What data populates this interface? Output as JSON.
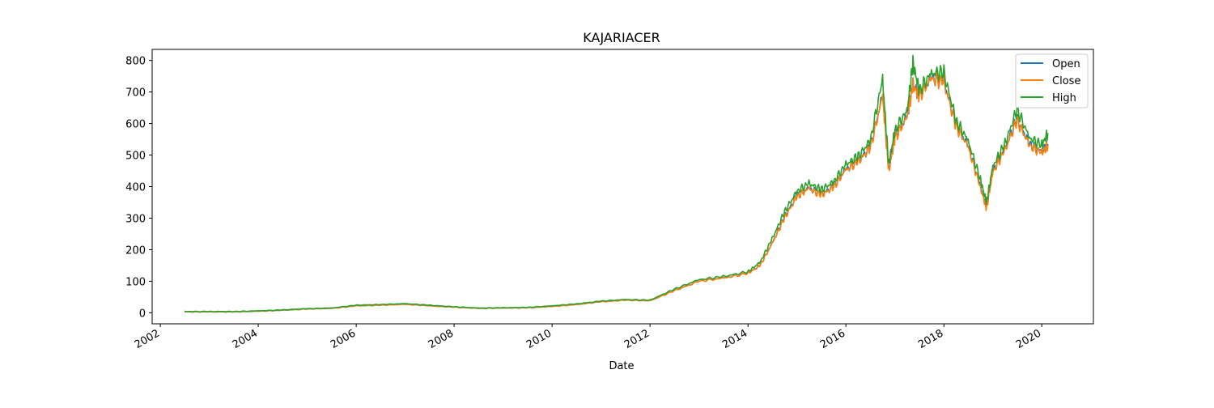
{
  "chart_data": {
    "type": "line",
    "title": "KAJARIACER",
    "xlabel": "Date",
    "ylabel": "",
    "x_type": "date",
    "xlim": [
      "2001-11-01",
      "2021-01-20"
    ],
    "ylim": [
      -35,
      835
    ],
    "x_ticks": [
      "2002",
      "2004",
      "2006",
      "2008",
      "2010",
      "2012",
      "2014",
      "2016",
      "2018",
      "2020"
    ],
    "y_ticks": [
      0,
      100,
      200,
      300,
      400,
      500,
      600,
      700,
      800
    ],
    "grid": false,
    "legend_position": "top-right",
    "colors": {
      "Open": "#1f77b4",
      "Close": "#ff7f0e",
      "High": "#2ca02c"
    },
    "x": [
      "2002-07-01",
      "2003-01-01",
      "2003-07-01",
      "2004-01-01",
      "2004-07-01",
      "2005-01-01",
      "2005-07-01",
      "2006-01-01",
      "2006-07-01",
      "2007-01-01",
      "2007-07-01",
      "2008-01-01",
      "2008-07-01",
      "2009-01-01",
      "2009-07-01",
      "2010-01-01",
      "2010-07-01",
      "2011-01-01",
      "2011-07-01",
      "2012-01-01",
      "2012-07-01",
      "2013-01-01",
      "2013-07-01",
      "2014-01-01",
      "2014-04-01",
      "2014-07-01",
      "2014-10-01",
      "2015-01-01",
      "2015-04-01",
      "2015-07-01",
      "2015-10-01",
      "2016-01-01",
      "2016-04-01",
      "2016-07-01",
      "2016-10-01",
      "2016-11-15",
      "2017-01-01",
      "2017-04-01",
      "2017-05-15",
      "2017-07-01",
      "2017-10-01",
      "2018-01-01",
      "2018-04-01",
      "2018-07-01",
      "2018-10-01",
      "2018-11-15",
      "2019-01-01",
      "2019-04-01",
      "2019-07-01",
      "2019-10-01",
      "2020-01-01",
      "2020-02-15"
    ],
    "series": [
      {
        "name": "Open",
        "values": [
          3,
          3,
          3,
          5,
          8,
          12,
          14,
          22,
          24,
          27,
          22,
          18,
          14,
          15,
          16,
          20,
          26,
          35,
          40,
          38,
          70,
          100,
          110,
          125,
          150,
          220,
          305,
          370,
          395,
          375,
          400,
          455,
          480,
          525,
          690,
          450,
          560,
          620,
          725,
          690,
          745,
          735,
          595,
          530,
          400,
          335,
          450,
          520,
          615,
          535,
          510,
          535
        ]
      },
      {
        "name": "Close",
        "values": [
          3,
          3,
          3,
          5,
          8,
          12,
          14,
          22,
          24,
          27,
          22,
          18,
          14,
          15,
          16,
          20,
          26,
          35,
          40,
          38,
          70,
          100,
          110,
          125,
          150,
          220,
          300,
          368,
          393,
          372,
          398,
          452,
          478,
          522,
          685,
          445,
          555,
          618,
          720,
          688,
          742,
          730,
          592,
          525,
          395,
          330,
          445,
          515,
          610,
          530,
          505,
          530
        ]
      },
      {
        "name": "High",
        "values": [
          4,
          4,
          4,
          6,
          9,
          13,
          15,
          24,
          26,
          29,
          24,
          19,
          15,
          16,
          17,
          22,
          28,
          37,
          42,
          40,
          75,
          105,
          115,
          130,
          160,
          235,
          320,
          385,
          410,
          390,
          415,
          470,
          495,
          545,
          740,
          470,
          580,
          640,
          790,
          705,
          760,
          760,
          610,
          545,
          420,
          350,
          465,
          535,
          645,
          555,
          530,
          570
        ]
      }
    ]
  }
}
